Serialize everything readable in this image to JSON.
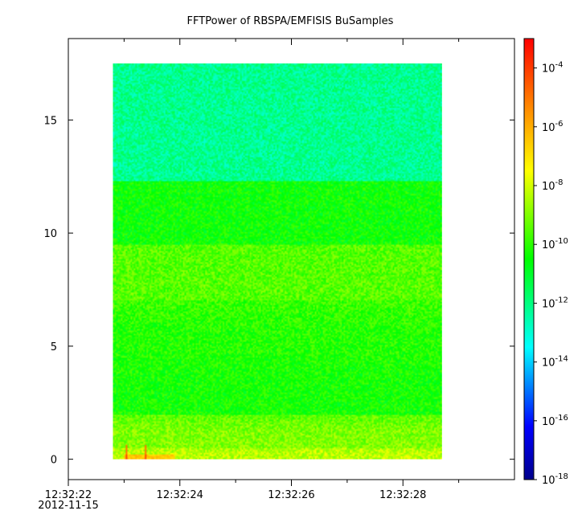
{
  "chart_data": {
    "type": "heatmap",
    "title": "FFTPower of RBSPA/EMFISIS  BuSamples",
    "xlabel": "",
    "ylabel": "",
    "x": {
      "ticks": [
        {
          "label": "12:32:22",
          "sublabel": "2012-11-15",
          "seconds": 22
        },
        {
          "label": "12:32:24",
          "seconds": 24
        },
        {
          "label": "12:32:26",
          "seconds": 26
        },
        {
          "label": "12:32:28",
          "seconds": 28
        }
      ],
      "minor_tick_seconds": [
        23,
        25,
        27,
        29
      ],
      "range_seconds": [
        22,
        30
      ],
      "data_range_seconds": [
        22.8,
        28.7
      ]
    },
    "y": {
      "ticks": [
        0,
        5,
        10,
        15
      ],
      "range": [
        -0.9,
        18.6
      ],
      "data_range": [
        0,
        17.5
      ]
    },
    "colorbar": {
      "scale": "log",
      "range": [
        1e-18,
        0.001
      ],
      "ticks": [
        {
          "base": "10",
          "exp": "-4",
          "value": 0.0001
        },
        {
          "base": "10",
          "exp": "-6",
          "value": 1e-06
        },
        {
          "base": "10",
          "exp": "-8",
          "value": 1e-08
        },
        {
          "base": "10",
          "exp": "-10",
          "value": 1e-10
        },
        {
          "base": "10",
          "exp": "-12",
          "value": 1e-12
        },
        {
          "base": "10",
          "exp": "-14",
          "value": 1e-14
        },
        {
          "base": "10",
          "exp": "-16",
          "value": 1e-16
        },
        {
          "base": "10",
          "exp": "-18",
          "value": 1e-18
        }
      ],
      "colormap": [
        "#00008b",
        "#0000ff",
        "#00ffff",
        "#00ff00",
        "#ffff00",
        "#ff8c00",
        "#ff0000"
      ]
    },
    "spectrogram_bands": [
      {
        "y_range": [
          0,
          0.5
        ],
        "log_power": -8.3
      },
      {
        "y_range": [
          0.5,
          2.0
        ],
        "log_power": -9.0
      },
      {
        "y_range": [
          2.0,
          4.5
        ],
        "log_power": -10.3
      },
      {
        "y_range": [
          4.5,
          7.0
        ],
        "log_power": -10.1
      },
      {
        "y_range": [
          7.0,
          9.5
        ],
        "log_power": -9.5
      },
      {
        "y_range": [
          9.5,
          12.3
        ],
        "log_power": -10.4
      },
      {
        "y_range": [
          12.3,
          17.5
        ],
        "log_power": -12.2
      }
    ],
    "spikes": [
      {
        "seconds": 23.05,
        "log_power": -4.2
      },
      {
        "seconds": 23.38,
        "log_power": -4.2
      }
    ],
    "grid": false,
    "legend": "colorbar-right"
  }
}
